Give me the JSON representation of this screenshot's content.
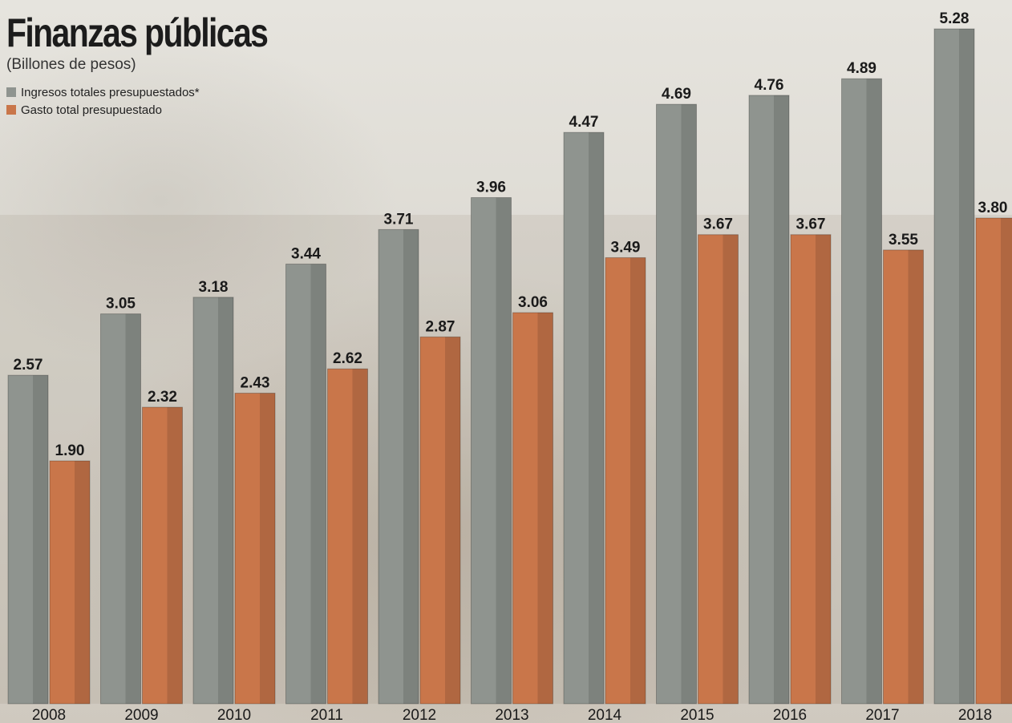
{
  "colors": {
    "ingresos": "#8f948f",
    "gasto": "#c9764a"
  },
  "chart_data": {
    "type": "bar",
    "title": "Finanzas públicas",
    "subtitle": "(Billones de pesos)",
    "categories": [
      "2008",
      "2009",
      "2010",
      "2011",
      "2012",
      "2013",
      "2014",
      "2015",
      "2016",
      "2017",
      "2018"
    ],
    "series": [
      {
        "name": "Ingresos totales presupuestados*",
        "values": [
          2.57,
          3.05,
          3.18,
          3.44,
          3.71,
          3.96,
          4.47,
          4.69,
          4.76,
          4.89,
          5.28
        ],
        "labels": [
          "2.57",
          "3.05",
          "3.18",
          "3.44",
          "3.71",
          "3.96",
          "4.47",
          "4.69",
          "4.76",
          "4.89",
          "5.28"
        ]
      },
      {
        "name": "Gasto total presupuestado",
        "values": [
          1.9,
          2.32,
          2.43,
          2.62,
          2.87,
          3.06,
          3.49,
          3.67,
          3.67,
          3.55,
          3.8
        ],
        "labels": [
          "1.90",
          "2.32",
          "2.43",
          "2.62",
          "2.87",
          "3.06",
          "3.49",
          "3.67",
          "3.67",
          "3.55",
          "3.80"
        ]
      }
    ],
    "ylim": [
      0,
      5.28
    ],
    "grid": false,
    "legend": "top-left"
  }
}
